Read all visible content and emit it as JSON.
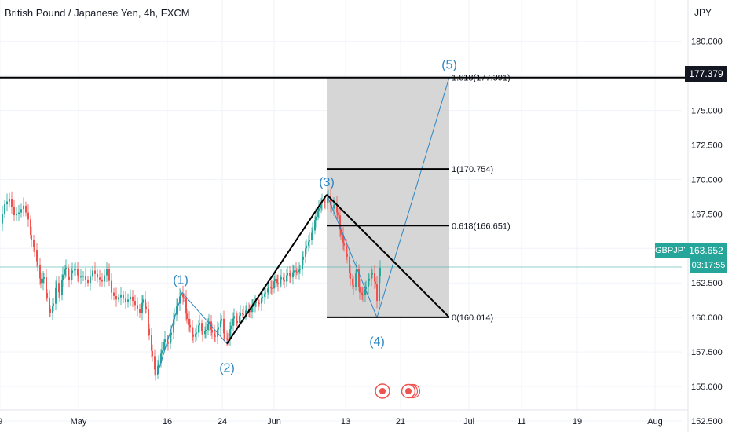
{
  "header": {
    "title": "British Pound / Japanese Yen, 4h, FXCM"
  },
  "axis": {
    "currency": "JPY"
  },
  "quote": {
    "symbol": "GBPJPY",
    "price": "163.652",
    "countdown": "03:17:55",
    "target_tag": "177.379"
  },
  "colors": {
    "up": "#26a69a",
    "down": "#ef5350",
    "wave": "#2e86c1",
    "target_box": "#cfcfcf",
    "event": "#ef5350"
  },
  "chart_data": {
    "type": "candlestick",
    "ylim": [
      151.7,
      183.0
    ],
    "y_ticks": [
      "180.000",
      "177.500",
      "175.000",
      "172.500",
      "170.000",
      "167.500",
      "165.000",
      "162.500",
      "160.000",
      "157.500",
      "155.000",
      "152.500"
    ],
    "x_ticks": [
      "9",
      "May",
      "16",
      "24",
      "Jun",
      "13",
      "21",
      "Jul",
      "11",
      "19",
      "Aug"
    ],
    "x_tick_slots": [
      0,
      100,
      213,
      283,
      349,
      440,
      510,
      597,
      664,
      735,
      834
    ],
    "current_price": 163.652,
    "horizontal_line": 177.379,
    "fib_levels": [
      {
        "label": "1.618(177.391)",
        "value": 177.391
      },
      {
        "label": "1(170.754)",
        "value": 170.754
      },
      {
        "label": "0.618(166.651)",
        "value": 166.651
      },
      {
        "label": "0(160.014)",
        "value": 160.014
      }
    ],
    "waves": [
      {
        "label": "(1)",
        "slot": 232,
        "value": 161.8
      },
      {
        "label": "(2)",
        "slot": 289,
        "value": 158.1
      },
      {
        "label": "(3)",
        "slot": 416,
        "value": 168.9
      },
      {
        "label": "(4)",
        "slot": 480,
        "value": 160.0
      },
      {
        "label": "(5)",
        "slot": 572,
        "value": 177.4
      }
    ],
    "wave_start": {
      "slot": 200,
      "value": 155.8
    },
    "target_box": {
      "slot_start": 416,
      "slot_end": 572,
      "top": 177.379,
      "bottom": 160.014
    },
    "trend_line": [
      {
        "slot": 416,
        "value": 168.9
      },
      {
        "slot": 572,
        "value": 160.014
      }
    ],
    "fib_line_slots": [
      416,
      572
    ],
    "price_path": [
      [
        0,
        166.8
      ],
      [
        6,
        168.2
      ],
      [
        12,
        168.6
      ],
      [
        18,
        167.4
      ],
      [
        24,
        167.6
      ],
      [
        30,
        168.1
      ],
      [
        36,
        167.1
      ],
      [
        40,
        165.6
      ],
      [
        44,
        164.9
      ],
      [
        48,
        163.8
      ],
      [
        52,
        162.5
      ],
      [
        56,
        162.9
      ],
      [
        60,
        161.4
      ],
      [
        64,
        160.3
      ],
      [
        68,
        161.0
      ],
      [
        72,
        162.5
      ],
      [
        76,
        161.6
      ],
      [
        80,
        163.1
      ],
      [
        84,
        163.6
      ],
      [
        88,
        162.7
      ],
      [
        92,
        163.4
      ],
      [
        96,
        163.5
      ],
      [
        100,
        162.9
      ],
      [
        106,
        163.0
      ],
      [
        112,
        162.5
      ],
      [
        118,
        163.4
      ],
      [
        124,
        162.9
      ],
      [
        130,
        162.6
      ],
      [
        136,
        163.5
      ],
      [
        142,
        161.8
      ],
      [
        148,
        161.3
      ],
      [
        154,
        161.6
      ],
      [
        160,
        161.1
      ],
      [
        166,
        161.5
      ],
      [
        172,
        160.9
      ],
      [
        178,
        160.3
      ],
      [
        182,
        161.3
      ],
      [
        186,
        160.6
      ],
      [
        190,
        158.7
      ],
      [
        194,
        157.2
      ],
      [
        198,
        155.9
      ],
      [
        202,
        156.7
      ],
      [
        206,
        157.6
      ],
      [
        210,
        158.4
      ],
      [
        214,
        158.1
      ],
      [
        218,
        158.9
      ],
      [
        222,
        160.2
      ],
      [
        226,
        161.0
      ],
      [
        230,
        161.7
      ],
      [
        234,
        161.4
      ],
      [
        238,
        159.9
      ],
      [
        242,
        159.3
      ],
      [
        246,
        158.6
      ],
      [
        250,
        158.9
      ],
      [
        254,
        159.6
      ],
      [
        258,
        158.8
      ],
      [
        262,
        159.1
      ],
      [
        266,
        159.7
      ],
      [
        270,
        158.9
      ],
      [
        274,
        158.6
      ],
      [
        278,
        159.3
      ],
      [
        282,
        159.9
      ],
      [
        286,
        158.5
      ],
      [
        290,
        158.4
      ],
      [
        294,
        159.4
      ],
      [
        298,
        160.1
      ],
      [
        302,
        159.6
      ],
      [
        306,
        160.3
      ],
      [
        310,
        160.2
      ],
      [
        314,
        160.6
      ],
      [
        318,
        160.4
      ],
      [
        322,
        160.9
      ],
      [
        326,
        161.1
      ],
      [
        330,
        161.0
      ],
      [
        334,
        161.5
      ],
      [
        338,
        161.8
      ],
      [
        342,
        162.2
      ],
      [
        346,
        162.1
      ],
      [
        350,
        162.8
      ],
      [
        354,
        162.4
      ],
      [
        358,
        162.9
      ],
      [
        362,
        162.6
      ],
      [
        366,
        163.2
      ],
      [
        370,
        162.9
      ],
      [
        374,
        163.4
      ],
      [
        378,
        163.3
      ],
      [
        382,
        163.5
      ],
      [
        386,
        164.4
      ],
      [
        390,
        165.2
      ],
      [
        394,
        165.6
      ],
      [
        398,
        166.3
      ],
      [
        402,
        167.3
      ],
      [
        406,
        167.9
      ],
      [
        410,
        168.4
      ],
      [
        414,
        168.3
      ],
      [
        418,
        168.8
      ],
      [
        422,
        167.9
      ],
      [
        426,
        168.2
      ],
      [
        430,
        167.4
      ],
      [
        434,
        166.0
      ],
      [
        438,
        165.2
      ],
      [
        442,
        164.4
      ],
      [
        446,
        162.8
      ],
      [
        450,
        162.2
      ],
      [
        454,
        163.5
      ],
      [
        458,
        161.8
      ],
      [
        462,
        161.6
      ],
      [
        466,
        162.2
      ],
      [
        470,
        162.8
      ],
      [
        474,
        163.2
      ],
      [
        478,
        162.4
      ],
      [
        480,
        161.2
      ],
      [
        484,
        163.6
      ]
    ]
  }
}
